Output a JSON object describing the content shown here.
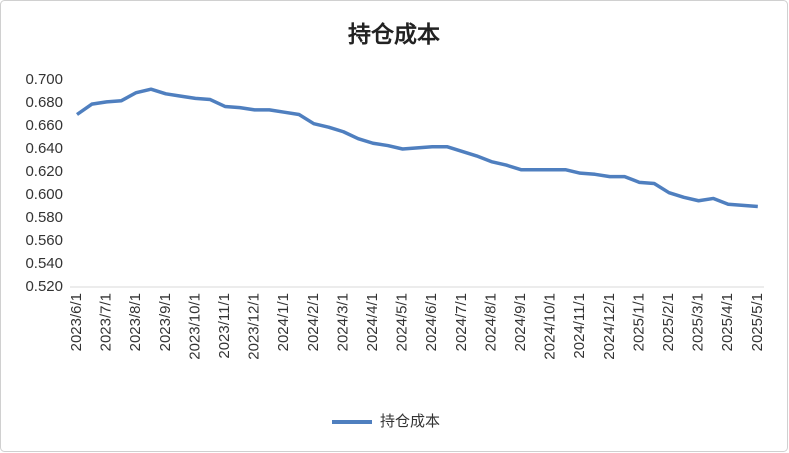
{
  "chart_data": {
    "type": "line",
    "title": "持仓成本",
    "categories": [
      "2023/6/1",
      null,
      "2023/7/1",
      null,
      "2023/8/1",
      null,
      "2023/9/1",
      null,
      "2023/10/1",
      null,
      "2023/11/1",
      null,
      "2023/12/1",
      null,
      "2024/1/1",
      null,
      "2024/2/1",
      null,
      "2024/3/1",
      null,
      "2024/4/1",
      null,
      "2024/5/1",
      null,
      "2024/6/1",
      null,
      "2024/7/1",
      null,
      "2024/8/1",
      null,
      "2024/9/1",
      null,
      "2024/10/1",
      null,
      "2024/11/1",
      null,
      "2024/12/1",
      null,
      "2025/1/1",
      null,
      "2025/2/1",
      null,
      "2025/3/1",
      null,
      "2025/4/1",
      null,
      "2025/5/1"
    ],
    "series": [
      {
        "name": "持仓成本",
        "color": "#4f7fbf",
        "values": [
          0.67,
          0.679,
          0.681,
          0.682,
          0.689,
          0.692,
          0.688,
          0.686,
          0.684,
          0.683,
          0.677,
          0.676,
          0.674,
          0.674,
          0.672,
          0.67,
          0.662,
          0.659,
          0.655,
          0.649,
          0.645,
          0.643,
          0.64,
          0.641,
          0.642,
          0.642,
          0.638,
          0.634,
          0.629,
          0.626,
          0.622,
          0.622,
          0.622,
          0.622,
          0.619,
          0.618,
          0.616,
          0.616,
          0.611,
          0.61,
          0.602,
          0.598,
          0.595,
          0.597,
          0.592,
          0.591,
          0.59
        ]
      }
    ],
    "ylim": [
      0.52,
      0.7
    ],
    "yticks": [
      {
        "value": 0.52,
        "label": "0.520"
      },
      {
        "value": 0.54,
        "label": "0.540"
      },
      {
        "value": 0.56,
        "label": "0.560"
      },
      {
        "value": 0.58,
        "label": "0.580"
      },
      {
        "value": 0.6,
        "label": "0.600"
      },
      {
        "value": 0.62,
        "label": "0.620"
      },
      {
        "value": 0.64,
        "label": "0.640"
      },
      {
        "value": 0.66,
        "label": "0.660"
      },
      {
        "value": 0.68,
        "label": "0.680"
      },
      {
        "value": 0.7,
        "label": "0.700"
      }
    ],
    "grid": false,
    "legend": "bottom"
  }
}
